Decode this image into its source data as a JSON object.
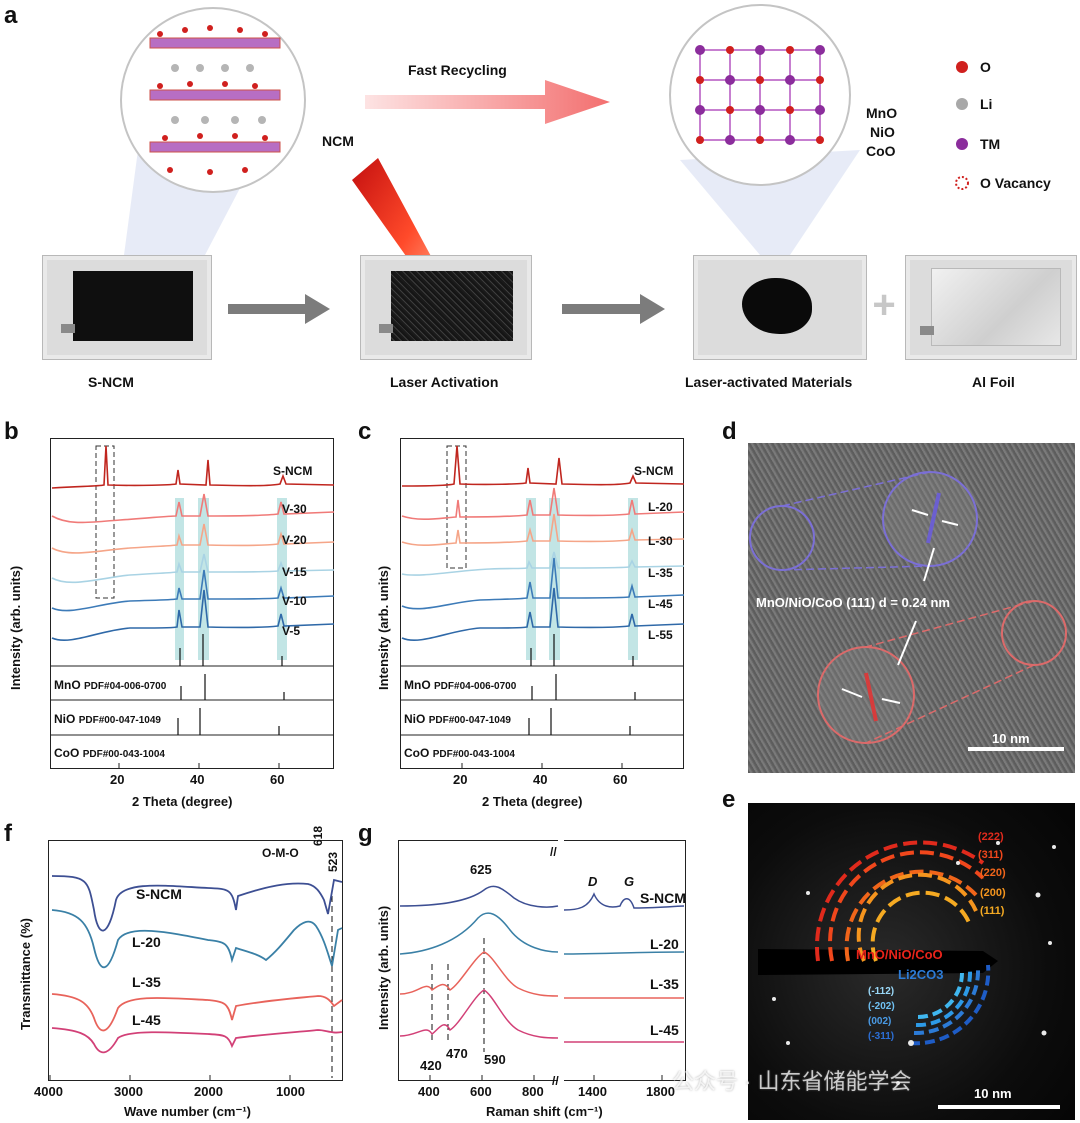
{
  "panels": {
    "a": "a",
    "b": "b",
    "c": "c",
    "d": "d",
    "e": "e",
    "f": "f",
    "g": "g"
  },
  "a": {
    "fast_recycling": "Fast Recycling",
    "ncm": "NCM",
    "oxides": [
      "MnO",
      "NiO",
      "CoO"
    ],
    "legend": [
      {
        "label": "O",
        "color": "#d0201e"
      },
      {
        "label": "Li",
        "color": "#a8a8a8"
      },
      {
        "label": "TM",
        "color": "#8b2d9c"
      },
      {
        "label": "O Vacancy",
        "color": "#d0201e"
      }
    ],
    "captions": [
      "S-NCM",
      "Laser Activation",
      "Laser-activated Materials",
      "Al Foil"
    ],
    "plus": "+"
  },
  "b": {
    "ylabel": "Intensity (arb. units)",
    "xlabel": "2 Theta (degree)",
    "ticks": [
      "20",
      "40",
      "60"
    ],
    "series": [
      "S-NCM",
      "V-30",
      "V-20",
      "V-15",
      "V-10",
      "V-5"
    ],
    "refs": [
      {
        "name": "MnO",
        "pdf": "PDF#04-006-0700"
      },
      {
        "name": "NiO",
        "pdf": "PDF#00-047-1049"
      },
      {
        "name": "CoO",
        "pdf": "PDF#00-043-1004"
      }
    ]
  },
  "c": {
    "ylabel": "Intensity (arb. units)",
    "xlabel": "2 Theta (degree)",
    "ticks": [
      "20",
      "40",
      "60"
    ],
    "series": [
      "S-NCM",
      "L-20",
      "L-30",
      "L-35",
      "L-45",
      "L-55"
    ],
    "refs": [
      {
        "name": "MnO",
        "pdf": "PDF#04-006-0700"
      },
      {
        "name": "NiO",
        "pdf": "PDF#00-047-1049"
      },
      {
        "name": "CoO",
        "pdf": "PDF#00-043-1004"
      }
    ]
  },
  "d": {
    "annotation": "MnO/NiO/CoO  (111)  d = 0.24 nm",
    "scale": "10 nm"
  },
  "e": {
    "rings_oxide": [
      "(222)",
      "(311)",
      "(220)",
      "(200)",
      "(111)"
    ],
    "oxide_label": "MnO/NiO/CoO",
    "li2co3_label": "Li2CO3",
    "rings_li": [
      "(-112)",
      "(-202)",
      "(002)",
      "(-311)"
    ],
    "scale": "10 nm"
  },
  "f": {
    "ylabel": "Transmittance (%)",
    "xlabel": "Wave number (cm⁻¹)",
    "ticks": [
      "4000",
      "3000",
      "2000",
      "1000"
    ],
    "series": [
      "S-NCM",
      "L-20",
      "L-35",
      "L-45"
    ],
    "omo": "O-M-O",
    "p618": "618",
    "p523": "523"
  },
  "g": {
    "ylabel": "Intensity (arb. units)",
    "xlabel": "Raman shift (cm⁻¹)",
    "ticks": [
      "400",
      "600",
      "800",
      "1400",
      "1800"
    ],
    "series": [
      "S-NCM",
      "L-20",
      "L-35",
      "L-45"
    ],
    "p625": "625",
    "p420": "420",
    "p470": "470",
    "p590": "590",
    "D": "D",
    "G": "G"
  },
  "watermark": "公众号 · 山东省储能学会"
}
